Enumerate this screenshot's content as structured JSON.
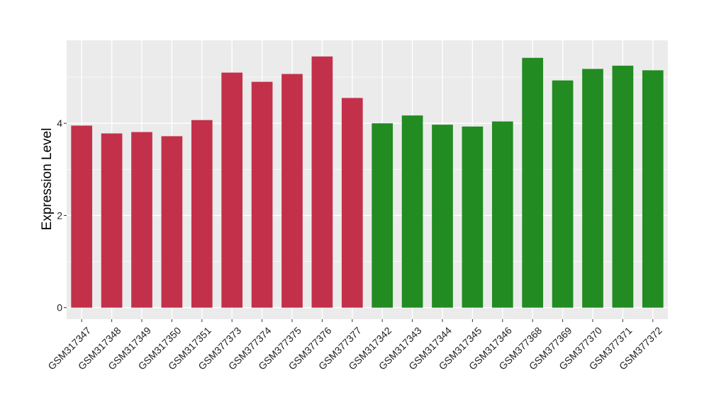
{
  "chart_data": {
    "type": "bar",
    "title": "",
    "xlabel": "",
    "ylabel": "Expression Level",
    "ylim": [
      -0.25,
      5.8
    ],
    "yticks": [
      0,
      2,
      4
    ],
    "grid": true,
    "legend": "none",
    "categories": [
      "GSM317347",
      "GSM317348",
      "GSM317349",
      "GSM317350",
      "GSM317351",
      "GSM377373",
      "GSM377374",
      "GSM377375",
      "GSM377376",
      "GSM377377",
      "GSM317342",
      "GSM317343",
      "GSM317344",
      "GSM317345",
      "GSM317346",
      "GSM377368",
      "GSM377369",
      "GSM377370",
      "GSM377371",
      "GSM377372"
    ],
    "values": [
      3.95,
      3.78,
      3.81,
      3.72,
      4.07,
      5.1,
      4.9,
      5.07,
      5.45,
      4.55,
      4.0,
      4.17,
      3.97,
      3.93,
      4.04,
      5.42,
      4.93,
      5.18,
      5.25,
      5.15
    ],
    "bar_colors": [
      "#c3304a",
      "#c3304a",
      "#c3304a",
      "#c3304a",
      "#c3304a",
      "#c3304a",
      "#c3304a",
      "#c3304a",
      "#c3304a",
      "#c3304a",
      "#228b22",
      "#228b22",
      "#228b22",
      "#228b22",
      "#228b22",
      "#228b22",
      "#228b22",
      "#228b22",
      "#228b22",
      "#228b22"
    ],
    "panel_background": "#ebebeb",
    "grid_color": "#ffffff"
  }
}
